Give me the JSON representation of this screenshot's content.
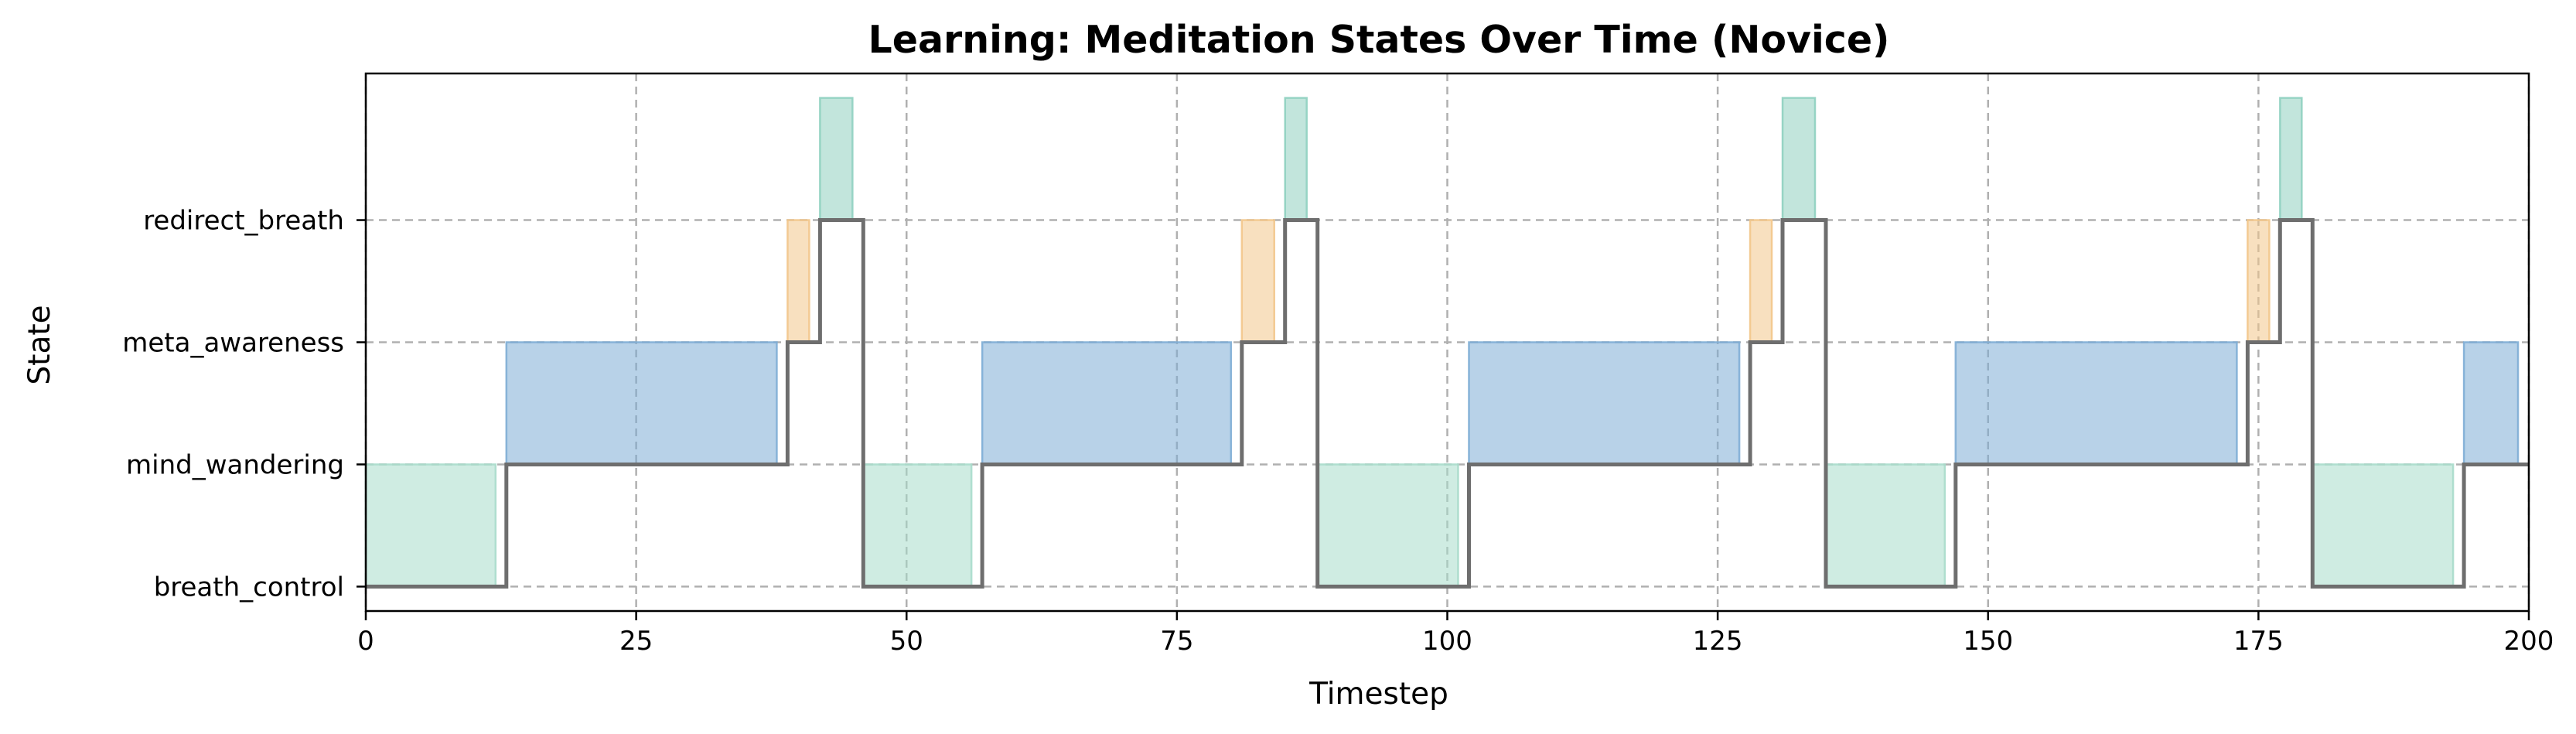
{
  "chart_data": {
    "type": "step",
    "title": "Learning: Meditation States Over Time (Novice)",
    "xlabel": "Timestep",
    "ylabel": "State",
    "xlim": [
      0,
      200
    ],
    "ylim": [
      -0.2,
      4.2
    ],
    "x_ticks": [
      0,
      25,
      50,
      75,
      100,
      125,
      150,
      175,
      200
    ],
    "y_categories": [
      "breath_control",
      "mind_wandering",
      "meta_awareness",
      "redirect_breath"
    ],
    "grid": true,
    "colors": {
      "line": "#6e6e6e",
      "breath_control": "#a8dccb",
      "mind_wandering": "#7eadd5",
      "meta_awareness": "#f2c78b",
      "redirect_breath": "#8fd0c0"
    },
    "shaded_segments": [
      {
        "state": "breath_control",
        "x0": 0,
        "x1": 12
      },
      {
        "state": "mind_wandering",
        "x0": 13,
        "x1": 38
      },
      {
        "state": "meta_awareness",
        "x0": 39,
        "x1": 41
      },
      {
        "state": "redirect_breath",
        "x0": 42,
        "x1": 45
      },
      {
        "state": "breath_control",
        "x0": 46,
        "x1": 56
      },
      {
        "state": "mind_wandering",
        "x0": 57,
        "x1": 80
      },
      {
        "state": "meta_awareness",
        "x0": 81,
        "x1": 84
      },
      {
        "state": "redirect_breath",
        "x0": 85,
        "x1": 87
      },
      {
        "state": "breath_control",
        "x0": 88,
        "x1": 101
      },
      {
        "state": "mind_wandering",
        "x0": 102,
        "x1": 127
      },
      {
        "state": "meta_awareness",
        "x0": 128,
        "x1": 130
      },
      {
        "state": "redirect_breath",
        "x0": 131,
        "x1": 134
      },
      {
        "state": "breath_control",
        "x0": 135,
        "x1": 146
      },
      {
        "state": "mind_wandering",
        "x0": 147,
        "x1": 173
      },
      {
        "state": "meta_awareness",
        "x0": 174,
        "x1": 176
      },
      {
        "state": "redirect_breath",
        "x0": 177,
        "x1": 179
      },
      {
        "state": "breath_control",
        "x0": 180,
        "x1": 193
      },
      {
        "state": "mind_wandering",
        "x0": 194,
        "x1": 199
      }
    ],
    "state_line": [
      {
        "x": 0,
        "y": 0
      },
      {
        "x": 13,
        "y": 0
      },
      {
        "x": 13,
        "y": 1
      },
      {
        "x": 39,
        "y": 1
      },
      {
        "x": 39,
        "y": 2
      },
      {
        "x": 42,
        "y": 2
      },
      {
        "x": 42,
        "y": 3
      },
      {
        "x": 46,
        "y": 3
      },
      {
        "x": 46,
        "y": 0
      },
      {
        "x": 57,
        "y": 0
      },
      {
        "x": 57,
        "y": 1
      },
      {
        "x": 81,
        "y": 1
      },
      {
        "x": 81,
        "y": 2
      },
      {
        "x": 85,
        "y": 2
      },
      {
        "x": 85,
        "y": 3
      },
      {
        "x": 88,
        "y": 3
      },
      {
        "x": 88,
        "y": 0
      },
      {
        "x": 102,
        "y": 0
      },
      {
        "x": 102,
        "y": 1
      },
      {
        "x": 128,
        "y": 1
      },
      {
        "x": 128,
        "y": 2
      },
      {
        "x": 131,
        "y": 2
      },
      {
        "x": 131,
        "y": 3
      },
      {
        "x": 135,
        "y": 3
      },
      {
        "x": 135,
        "y": 0
      },
      {
        "x": 147,
        "y": 0
      },
      {
        "x": 147,
        "y": 1
      },
      {
        "x": 174,
        "y": 1
      },
      {
        "x": 174,
        "y": 2
      },
      {
        "x": 177,
        "y": 2
      },
      {
        "x": 177,
        "y": 3
      },
      {
        "x": 180,
        "y": 3
      },
      {
        "x": 180,
        "y": 0
      },
      {
        "x": 194,
        "y": 0
      },
      {
        "x": 194,
        "y": 1
      },
      {
        "x": 200,
        "y": 1
      }
    ]
  }
}
